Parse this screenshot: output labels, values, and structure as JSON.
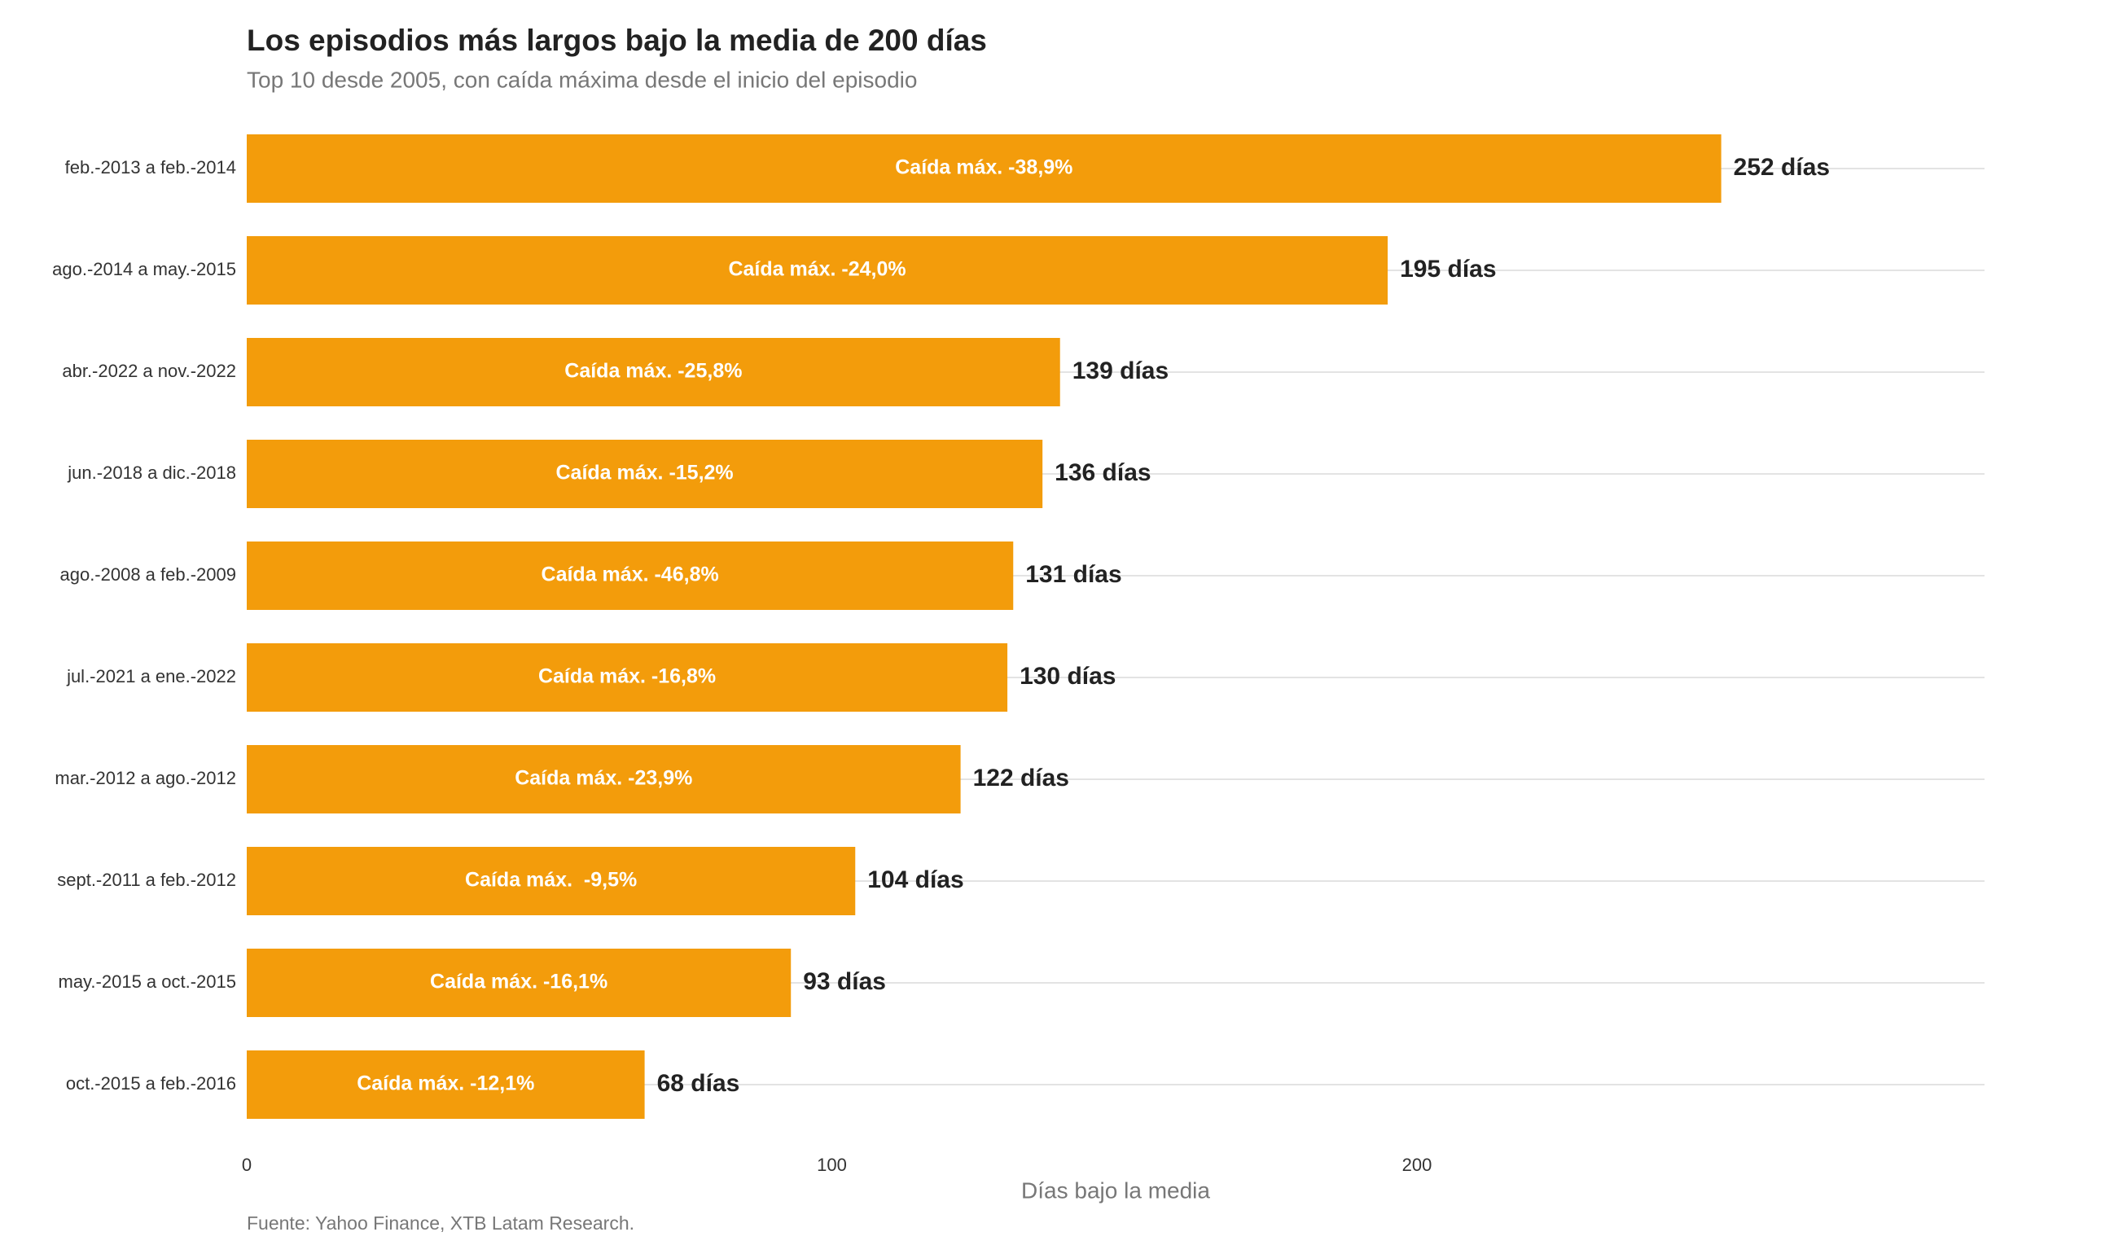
{
  "chart_data": {
    "type": "bar",
    "orientation": "horizontal",
    "title": "Los episodios más largos bajo la media de 200 días",
    "subtitle": "Top 10 desde 2005, con caída máxima desde el inicio del episodio",
    "x_label": "Días bajo la media",
    "source": "Fuente: Yahoo Finance, XTB Latam Research.",
    "categories": [
      "feb.-2013 a feb.-2014",
      "ago.-2014 a may.-2015",
      "abr.-2022 a nov.-2022",
      "jun.-2018 a dic.-2018",
      "ago.-2008 a feb.-2009",
      "jul.-2021 a ene.-2022",
      "mar.-2012 a ago.-2012",
      "sept.-2011 a feb.-2012",
      "may.-2015 a oct.-2015",
      "oct.-2015 a feb.-2016"
    ],
    "values": [
      252,
      195,
      139,
      136,
      131,
      130,
      122,
      104,
      93,
      68
    ],
    "value_labels": [
      "252 días",
      "195 días",
      "139 días",
      "136 días",
      "131 días",
      "130 días",
      "122 días",
      "104 días",
      "93 días",
      "68 días"
    ],
    "bar_annotations": [
      "Caída máx. -38,9%",
      "Caída máx. -24,0%",
      "Caída máx. -25,8%",
      "Caída máx. -15,2%",
      "Caída máx. -46,8%",
      "Caída máx. -16,8%",
      "Caída máx. -23,9%",
      "Caída máx.  -9,5%",
      "Caída máx. -16,1%",
      "Caída máx. -12,1%"
    ],
    "color": "#f39c0b",
    "xlim": [
      0,
      297
    ],
    "xticks": [
      0,
      100,
      200
    ],
    "grid": true
  }
}
